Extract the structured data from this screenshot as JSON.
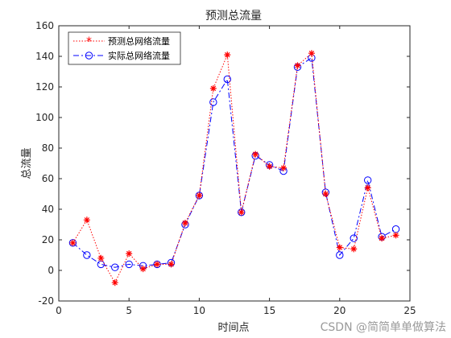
{
  "chart_data": {
    "type": "line",
    "title": "预测总流量",
    "xlabel": "时间点",
    "ylabel": "总流量",
    "xlim": [
      0,
      25
    ],
    "ylim": [
      -20,
      160
    ],
    "x_ticks": [
      0,
      5,
      10,
      15,
      20,
      25
    ],
    "y_ticks": [
      -20,
      0,
      20,
      40,
      60,
      80,
      100,
      120,
      140,
      160
    ],
    "grid": false,
    "legend_position": "top-left",
    "x": [
      1,
      2,
      3,
      4,
      5,
      6,
      7,
      8,
      9,
      10,
      11,
      12,
      13,
      14,
      15,
      16,
      17,
      18,
      19,
      20,
      21,
      22,
      23,
      24
    ],
    "series": [
      {
        "name": "预测总网络流量",
        "color": "#ff0000",
        "line_style": "dotted",
        "marker": "asterisk",
        "values": [
          18,
          33,
          8,
          -8,
          11,
          1,
          4,
          4,
          31,
          49,
          119,
          141,
          38,
          76,
          68,
          67,
          134,
          142,
          50,
          15,
          14,
          54,
          21,
          23
        ]
      },
      {
        "name": "实际总网络流量",
        "color": "#0000ff",
        "line_style": "dashdot",
        "marker": "circle",
        "values": [
          18,
          10,
          4,
          2,
          4,
          3,
          4,
          5,
          30,
          49,
          110,
          125,
          38,
          75,
          69,
          65,
          133,
          139,
          51,
          10,
          21,
          59,
          22,
          27
        ]
      }
    ]
  },
  "watermark": "CSDN @简简单单做算法"
}
